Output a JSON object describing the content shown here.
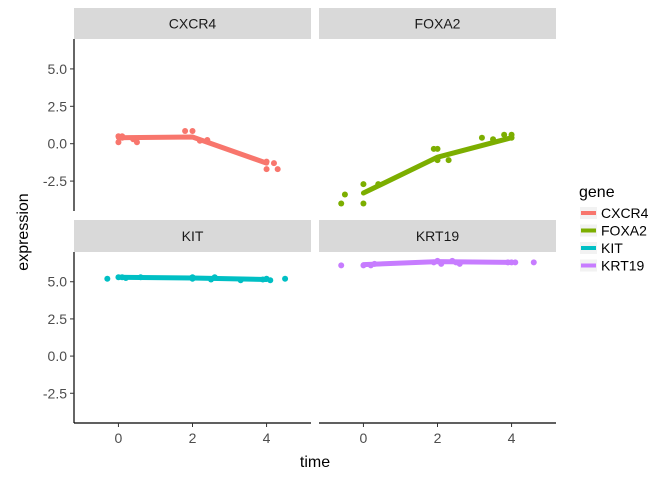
{
  "chart_data": {
    "type": "line",
    "subtype": "faceted scatter with fitted lines",
    "xlabel": "time",
    "ylabel": "expression",
    "x_ticks": [
      0,
      2,
      4
    ],
    "y_ticks": [
      5.0,
      2.5,
      0.0,
      -2.5
    ],
    "y_tick_labels": [
      "5.0",
      "2.5",
      "0.0",
      "-2.5"
    ],
    "xlim": [
      -1.2,
      5.2
    ],
    "ylim": [
      -4.5,
      7.0
    ],
    "grid": false,
    "legend": {
      "title": "gene",
      "position": "right",
      "entries": [
        "CXCR4",
        "FOXA2",
        "KIT",
        "KRT19"
      ]
    },
    "colors": {
      "CXCR4": "#F8766D",
      "FOXA2": "#7CAE00",
      "KIT": "#00BFC4",
      "KRT19": "#C77CFF",
      "strip_bg": "#D9D9D9",
      "axis": "#000000"
    },
    "facets": [
      {
        "name": "CXCR4",
        "line": [
          [
            0,
            0.4
          ],
          [
            2,
            0.45
          ],
          [
            4,
            -1.3
          ]
        ],
        "points": [
          [
            0,
            0.5
          ],
          [
            0,
            0.1
          ],
          [
            0.1,
            0.4
          ],
          [
            0.1,
            0.5
          ],
          [
            0.4,
            0.3
          ],
          [
            0.5,
            0.1
          ],
          [
            1.8,
            0.85
          ],
          [
            2.0,
            0.85
          ],
          [
            2.2,
            0.2
          ],
          [
            2.4,
            0.25
          ],
          [
            4.0,
            -1.2
          ],
          [
            4.0,
            -1.7
          ],
          [
            4.2,
            -1.3
          ],
          [
            4.3,
            -1.7
          ]
        ]
      },
      {
        "name": "FOXA2",
        "line": [
          [
            0,
            -3.3
          ],
          [
            2,
            -0.9
          ],
          [
            4,
            0.4
          ]
        ],
        "points": [
          [
            -0.6,
            -4.0
          ],
          [
            -0.5,
            -3.4
          ],
          [
            0.0,
            -4.0
          ],
          [
            0.0,
            -2.7
          ],
          [
            0.4,
            -2.7
          ],
          [
            1.9,
            -0.35
          ],
          [
            2.0,
            -0.35
          ],
          [
            2.0,
            -1.1
          ],
          [
            2.3,
            -1.1
          ],
          [
            3.2,
            0.4
          ],
          [
            3.5,
            0.3
          ],
          [
            3.8,
            0.6
          ],
          [
            4.0,
            0.4
          ],
          [
            4.0,
            0.6
          ]
        ]
      },
      {
        "name": "KIT",
        "line": [
          [
            0,
            5.3
          ],
          [
            2,
            5.25
          ],
          [
            4,
            5.15
          ]
        ],
        "points": [
          [
            -0.3,
            5.2
          ],
          [
            0.0,
            5.3
          ],
          [
            0.1,
            5.3
          ],
          [
            0.2,
            5.25
          ],
          [
            0.6,
            5.3
          ],
          [
            2.0,
            5.3
          ],
          [
            2.0,
            5.2
          ],
          [
            2.5,
            5.15
          ],
          [
            2.6,
            5.3
          ],
          [
            3.3,
            5.1
          ],
          [
            3.9,
            5.15
          ],
          [
            4.0,
            5.2
          ],
          [
            4.1,
            5.1
          ],
          [
            4.5,
            5.2
          ]
        ]
      },
      {
        "name": "KRT19",
        "line": [
          [
            0,
            6.15
          ],
          [
            2,
            6.35
          ],
          [
            4,
            6.3
          ]
        ],
        "points": [
          [
            -0.6,
            6.1
          ],
          [
            0.0,
            6.1
          ],
          [
            0.2,
            6.1
          ],
          [
            0.3,
            6.2
          ],
          [
            1.9,
            6.3
          ],
          [
            2.0,
            6.4
          ],
          [
            2.1,
            6.2
          ],
          [
            2.4,
            6.4
          ],
          [
            2.5,
            6.3
          ],
          [
            2.6,
            6.2
          ],
          [
            3.9,
            6.3
          ],
          [
            4.0,
            6.3
          ],
          [
            4.1,
            6.3
          ],
          [
            4.6,
            6.3
          ]
        ]
      }
    ]
  }
}
